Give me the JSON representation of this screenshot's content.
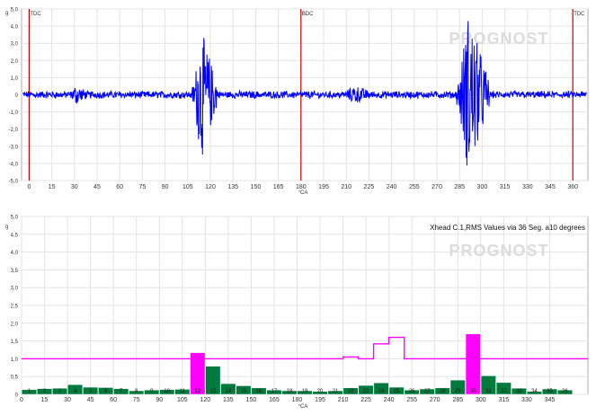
{
  "colors": {
    "signal": "#0000ff",
    "marker": "#cc0000",
    "bar_normal": "#007a3d",
    "bar_alarm": "#ff00ff",
    "threshold": "#ff00ff",
    "grid": "#e3e3e3",
    "watermark": "#dcdcdc"
  },
  "watermark": "PROGNOST",
  "chart_data": [
    {
      "type": "line",
      "y_unit": "g",
      "x_unit": "°CA",
      "xlim": [
        -5,
        370
      ],
      "ylim": [
        -5.0,
        5.0
      ],
      "x_ticks": [
        0,
        15,
        30,
        45,
        60,
        75,
        90,
        105,
        120,
        135,
        150,
        165,
        180,
        195,
        210,
        225,
        240,
        255,
        270,
        285,
        300,
        315,
        330,
        345,
        360
      ],
      "y_ticks": [
        "5,0",
        "4,0",
        "3,0",
        "2,0",
        "1,0",
        "0",
        "-1,0",
        "-2,0",
        "-3,0",
        "-4,0",
        "-5,0"
      ],
      "y_tick_values": [
        5,
        4,
        3,
        2,
        1,
        0,
        -1,
        -2,
        -3,
        -4,
        -5
      ],
      "markers": [
        {
          "x": 0,
          "label": "TDC"
        },
        {
          "x": 180,
          "label": "BDC"
        },
        {
          "x": 360,
          "label": "TDC"
        }
      ],
      "grid": true,
      "signal_profile": {
        "baseline_amplitude": 0.18,
        "bursts": [
          {
            "from": 26,
            "to": 40,
            "amplitude": 0.6
          },
          {
            "from": 108,
            "to": 125,
            "amplitude": 3.8
          },
          {
            "from": 207,
            "to": 230,
            "amplitude": 0.55
          },
          {
            "from": 283,
            "to": 305,
            "amplitude": 4.8
          }
        ]
      }
    },
    {
      "type": "bar",
      "title": "Xhead C.1,RMS Values via 36 Seg. a10 degrees",
      "y_unit": "g",
      "x_unit": "°CA",
      "xlim": [
        0,
        370
      ],
      "ylim": [
        0,
        5.0
      ],
      "x_ticks": [
        0,
        15,
        30,
        45,
        60,
        75,
        90,
        105,
        120,
        135,
        150,
        165,
        180,
        195,
        210,
        225,
        240,
        255,
        270,
        285,
        300,
        315,
        330,
        345
      ],
      "y_ticks": [
        "5,0",
        "4,5",
        "4,0",
        "3,5",
        "3,0",
        "2,5",
        "2,0",
        "1,5",
        "1,0",
        "0,5",
        "0"
      ],
      "y_tick_values": [
        5.0,
        4.5,
        4.0,
        3.5,
        3.0,
        2.5,
        2.0,
        1.5,
        1.0,
        0.5,
        0
      ],
      "segments": [
        "1",
        "2",
        "3",
        "4",
        "5",
        "6",
        "7",
        "8",
        "9",
        "10",
        "11",
        "12",
        "13",
        "14",
        "15",
        "16",
        "17",
        "18",
        "19",
        "20",
        "21",
        "22",
        "23",
        "24",
        "25",
        "26",
        "27",
        "28",
        "29",
        "30",
        "31",
        "32",
        "33",
        "34",
        "35",
        "36"
      ],
      "values": [
        0.13,
        0.16,
        0.17,
        0.27,
        0.2,
        0.19,
        0.16,
        0.1,
        0.12,
        0.13,
        0.14,
        1.17,
        0.79,
        0.3,
        0.24,
        0.18,
        0.12,
        0.1,
        0.1,
        0.08,
        0.1,
        0.18,
        0.25,
        0.32,
        0.2,
        0.12,
        0.15,
        0.18,
        0.4,
        1.7,
        0.52,
        0.33,
        0.17,
        0.08,
        0.15,
        0.12
      ],
      "threshold": [
        1,
        1,
        1,
        1,
        1,
        1,
        1,
        1,
        1,
        1,
        1,
        1,
        1,
        1,
        1,
        1,
        1,
        1,
        1,
        1,
        1,
        1.05,
        1.0,
        1.42,
        1.6,
        1,
        1,
        1,
        1,
        1,
        1,
        1,
        1,
        1,
        1,
        1
      ],
      "grid": true
    }
  ]
}
